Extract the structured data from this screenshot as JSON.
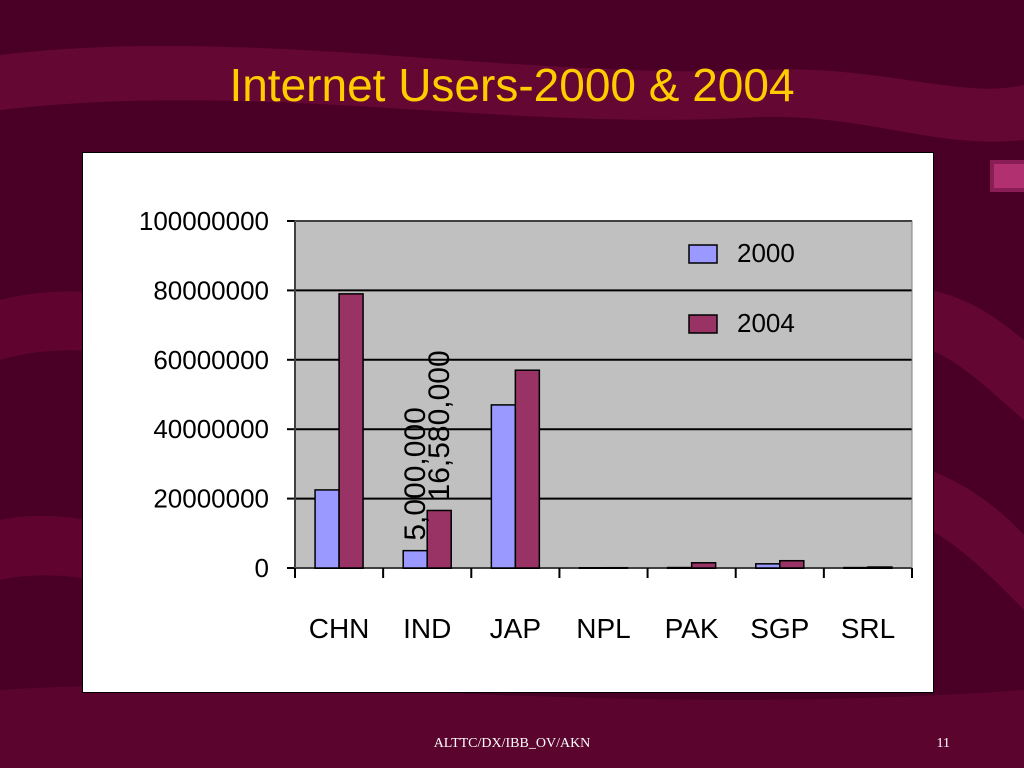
{
  "slide": {
    "title": "Internet Users-2000 & 2004",
    "footer": "ALTTC/DX/IBB_OV/AKN",
    "page_number": "11"
  },
  "colors": {
    "background": "#4a0026",
    "title": "#ffcc00",
    "series_2000": "#9999ff",
    "series_2004": "#993366",
    "plot_area": "#c0c0c0"
  },
  "chart_data": {
    "type": "bar",
    "title": "",
    "xlabel": "",
    "ylabel": "",
    "categories": [
      "CHN",
      "IND",
      "JAP",
      "NPL",
      "PAK",
      "SGP",
      "SRL"
    ],
    "series": [
      {
        "name": "2000",
        "values": [
          22500000,
          5000000,
          47000000,
          50000,
          130000,
          1200000,
          120000
        ]
      },
      {
        "name": "2004",
        "values": [
          79000000,
          16580000,
          57000000,
          80000,
          1500000,
          2100000,
          280000
        ]
      }
    ],
    "ylim": [
      0,
      100000000
    ],
    "yticks": [
      "0",
      "20000000",
      "40000000",
      "60000000",
      "80000000",
      "100000000"
    ],
    "ytick_values": [
      0,
      20000000,
      40000000,
      60000000,
      80000000,
      100000000
    ],
    "grid": true,
    "legend": "top-right",
    "data_labels": [
      {
        "series": "2000",
        "category": "IND",
        "text": "5,000,000"
      },
      {
        "series": "2004",
        "category": "IND",
        "text": "16,580,000"
      }
    ]
  }
}
